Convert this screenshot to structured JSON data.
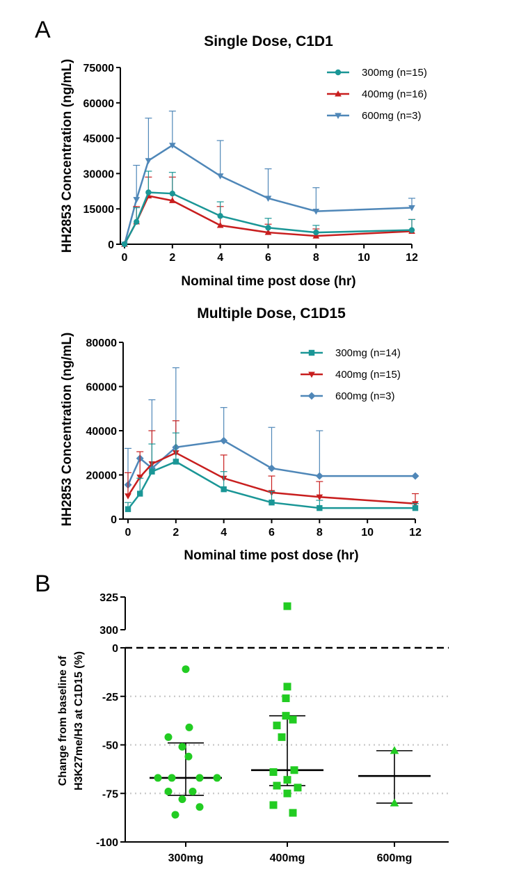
{
  "panels": {
    "a_label": "A",
    "b_label": "B"
  },
  "chart_data": [
    {
      "type": "line",
      "title": "Single Dose, C1D1",
      "xlabel": "Nominal time post dose (hr)",
      "ylabel": "HH2853 Concentration (ng/mL)",
      "xlim": [
        0,
        12
      ],
      "ylim": [
        0,
        75000
      ],
      "xticks": [
        0,
        2,
        4,
        6,
        8,
        10,
        12
      ],
      "yticks": [
        0,
        15000,
        30000,
        45000,
        60000,
        75000
      ],
      "ytick_labels": [
        "0",
        "15000",
        "30000",
        "45000",
        "60000",
        "75000"
      ],
      "legend_position": "top-right",
      "series": [
        {
          "name": "300mg (n=15)",
          "color": "#1a9696",
          "marker": "circle",
          "x": [
            0,
            0.5,
            1,
            2,
            4,
            6,
            8,
            12
          ],
          "y": [
            0,
            9500,
            22000,
            21500,
            12000,
            7000,
            5000,
            6000
          ],
          "err": [
            0,
            6000,
            9000,
            9000,
            6000,
            4000,
            3000,
            4500
          ]
        },
        {
          "name": "400mg (n=16)",
          "color": "#c81e1e",
          "marker": "triangle-up",
          "x": [
            0,
            0.5,
            1,
            2,
            4,
            6,
            8,
            12
          ],
          "y": [
            0,
            9500,
            20500,
            18500,
            8000,
            5000,
            3500,
            5500
          ],
          "err": [
            0,
            6500,
            8000,
            10000,
            8000,
            3500,
            3000,
            5000
          ]
        },
        {
          "name": "600mg (n=3)",
          "color": "#4f87b8",
          "marker": "triangle-down",
          "x": [
            0,
            0.5,
            1,
            2,
            4,
            6,
            8,
            12
          ],
          "y": [
            0,
            19000,
            35500,
            42000,
            29000,
            19500,
            14000,
            15500
          ],
          "err": [
            0,
            14500,
            18000,
            14500,
            15000,
            12500,
            10000,
            4000
          ]
        }
      ]
    },
    {
      "type": "line",
      "title": "Multiple Dose, C1D15",
      "xlabel": "Nominal time post dose (hr)",
      "ylabel": "HH2853 Concentration (ng/mL)",
      "xlim": [
        0,
        12
      ],
      "ylim": [
        0,
        80000
      ],
      "xticks": [
        0,
        2,
        4,
        6,
        8,
        10,
        12
      ],
      "yticks": [
        0,
        20000,
        40000,
        60000,
        80000
      ],
      "ytick_labels": [
        "0",
        "20000",
        "40000",
        "60000",
        "80000"
      ],
      "legend_position": "top-right",
      "series": [
        {
          "name": "300mg (n=14)",
          "color": "#1a9696",
          "marker": "square",
          "x": [
            0,
            0.5,
            1,
            2,
            4,
            6,
            8,
            12
          ],
          "y": [
            4500,
            11500,
            21500,
            26000,
            13500,
            7500,
            5000,
            5000
          ],
          "err": [
            3000,
            7000,
            12500,
            13000,
            8000,
            5000,
            3500,
            2000
          ]
        },
        {
          "name": "400mg (n=15)",
          "color": "#c81e1e",
          "marker": "triangle-down",
          "x": [
            0,
            0.5,
            1,
            2,
            4,
            6,
            8,
            12
          ],
          "y": [
            10500,
            19000,
            25000,
            30000,
            18500,
            12000,
            10000,
            7000
          ],
          "err": [
            10500,
            11500,
            15000,
            14500,
            10500,
            7500,
            7000,
            4500
          ]
        },
        {
          "name": "600mg (n=3)",
          "color": "#4f87b8",
          "marker": "diamond",
          "x": [
            0,
            0.5,
            1,
            2,
            4,
            6,
            8,
            12
          ],
          "y": [
            15500,
            27500,
            23000,
            32500,
            35500,
            23000,
            19500,
            19500
          ],
          "err": [
            16500,
            0,
            31000,
            36000,
            15000,
            18500,
            20500,
            0
          ]
        }
      ]
    },
    {
      "type": "scatter",
      "ylabel_lines": [
        "Change from baseline of",
        "H3K27me/H3 at C1D15 (%)"
      ],
      "categories": [
        "300mg",
        "400mg",
        "600mg"
      ],
      "ylim": [
        -100,
        325
      ],
      "y_axis_break": [
        0,
        300
      ],
      "yticks_lower": [
        0,
        -25,
        -50,
        -75,
        -100
      ],
      "ytick_labels_lower": [
        "0",
        "-25",
        "-50",
        "-75",
        "-100"
      ],
      "yticks_upper": [
        300,
        325
      ],
      "ytick_labels_upper": [
        "300",
        "325"
      ],
      "reference_lines": [
        0,
        -25,
        -50,
        -75
      ],
      "point_color": "#22cc22",
      "groups": [
        {
          "category": "300mg",
          "marker": "circle",
          "values": [
            -11,
            -41,
            -46,
            -51,
            -56,
            -67,
            -67,
            -67,
            -67,
            -74,
            -74,
            -78,
            -82,
            -86
          ],
          "median": -67,
          "q1": -76,
          "q3": -49
        },
        {
          "category": "400mg",
          "marker": "square",
          "values": [
            318,
            -20,
            -26,
            -35,
            -37,
            -40,
            -46,
            -63,
            -64,
            -68,
            -71,
            -72,
            -75,
            -81,
            -85
          ],
          "median": -63,
          "q1": -71,
          "q3": -35
        },
        {
          "category": "600mg",
          "marker": "triangle-up",
          "values": [
            -53,
            -80
          ],
          "median": -66,
          "q1": -80,
          "q3": -53
        }
      ]
    }
  ]
}
